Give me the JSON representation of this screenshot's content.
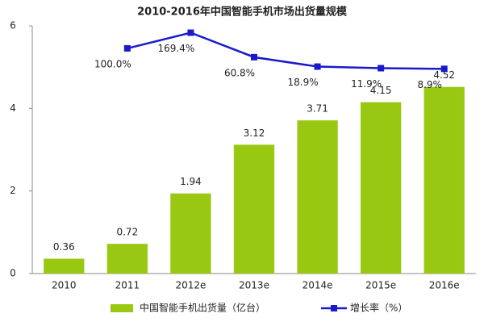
{
  "chart_data": {
    "type": "bar_line",
    "title": "2010-2016年中国智能手机市场出货量规模",
    "categories": [
      "2010",
      "2011",
      "2012e",
      "2013e",
      "2014e",
      "2015e",
      "2016e"
    ],
    "series": [
      {
        "name": "中国智能手机出货量（亿台）",
        "type": "bar",
        "color": "#99c812",
        "values": [
          0.36,
          0.72,
          1.94,
          3.12,
          3.71,
          4.15,
          4.52
        ]
      },
      {
        "name": "增长率（%）",
        "type": "line",
        "axis": "y2",
        "color": "#1a1acc",
        "values": [
          null,
          100.0,
          169.4,
          60.8,
          18.9,
          11.9,
          8.9
        ],
        "value_labels": [
          null,
          "100.0%",
          "169.4%",
          "60.8%",
          "18.9%",
          "11.9%",
          "8.9%"
        ]
      }
    ],
    "ylim": [
      0,
      6
    ],
    "yticks": [
      0,
      2,
      4,
      6
    ],
    "y2lim": [
      -900,
      200
    ],
    "legend": "bottom"
  }
}
